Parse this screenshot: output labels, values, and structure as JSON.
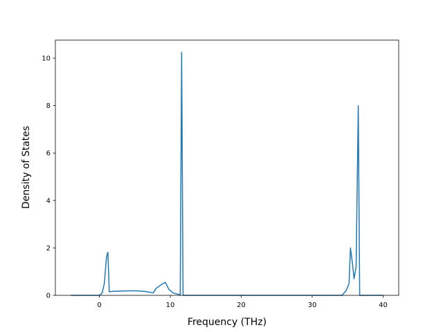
{
  "chart_data": {
    "type": "line",
    "xlabel": "Frequency (THz)",
    "ylabel": "Density of States",
    "x": [
      -4,
      0,
      0.4,
      0.7,
      1.0,
      1.2,
      1.4,
      2,
      3,
      4,
      5,
      6,
      6.8,
      7.6,
      8,
      9,
      9.3,
      9.8,
      10.4,
      11.4,
      11.6,
      11.8,
      12,
      20,
      34.2,
      34.8,
      35.2,
      35.4,
      35.7,
      35.9,
      36.2,
      36.5,
      36.7,
      40
    ],
    "values": [
      0,
      0,
      0.1,
      0.5,
      1.6,
      1.82,
      0.15,
      0.17,
      0.18,
      0.19,
      0.19,
      0.18,
      0.15,
      0.1,
      0.3,
      0.5,
      0.55,
      0.25,
      0.1,
      0.02,
      10.25,
      0,
      0,
      0,
      0,
      0.2,
      0.5,
      2.0,
      1.3,
      0.7,
      1.2,
      8.0,
      0,
      0
    ],
    "color": "#1f77b4",
    "xlim": [
      -6.2,
      42.2
    ],
    "xticks": [
      0,
      10,
      20,
      30,
      40
    ],
    "ylim": [
      0,
      10.76
    ],
    "yticks": [
      0,
      2,
      4,
      6,
      8,
      10
    ]
  }
}
